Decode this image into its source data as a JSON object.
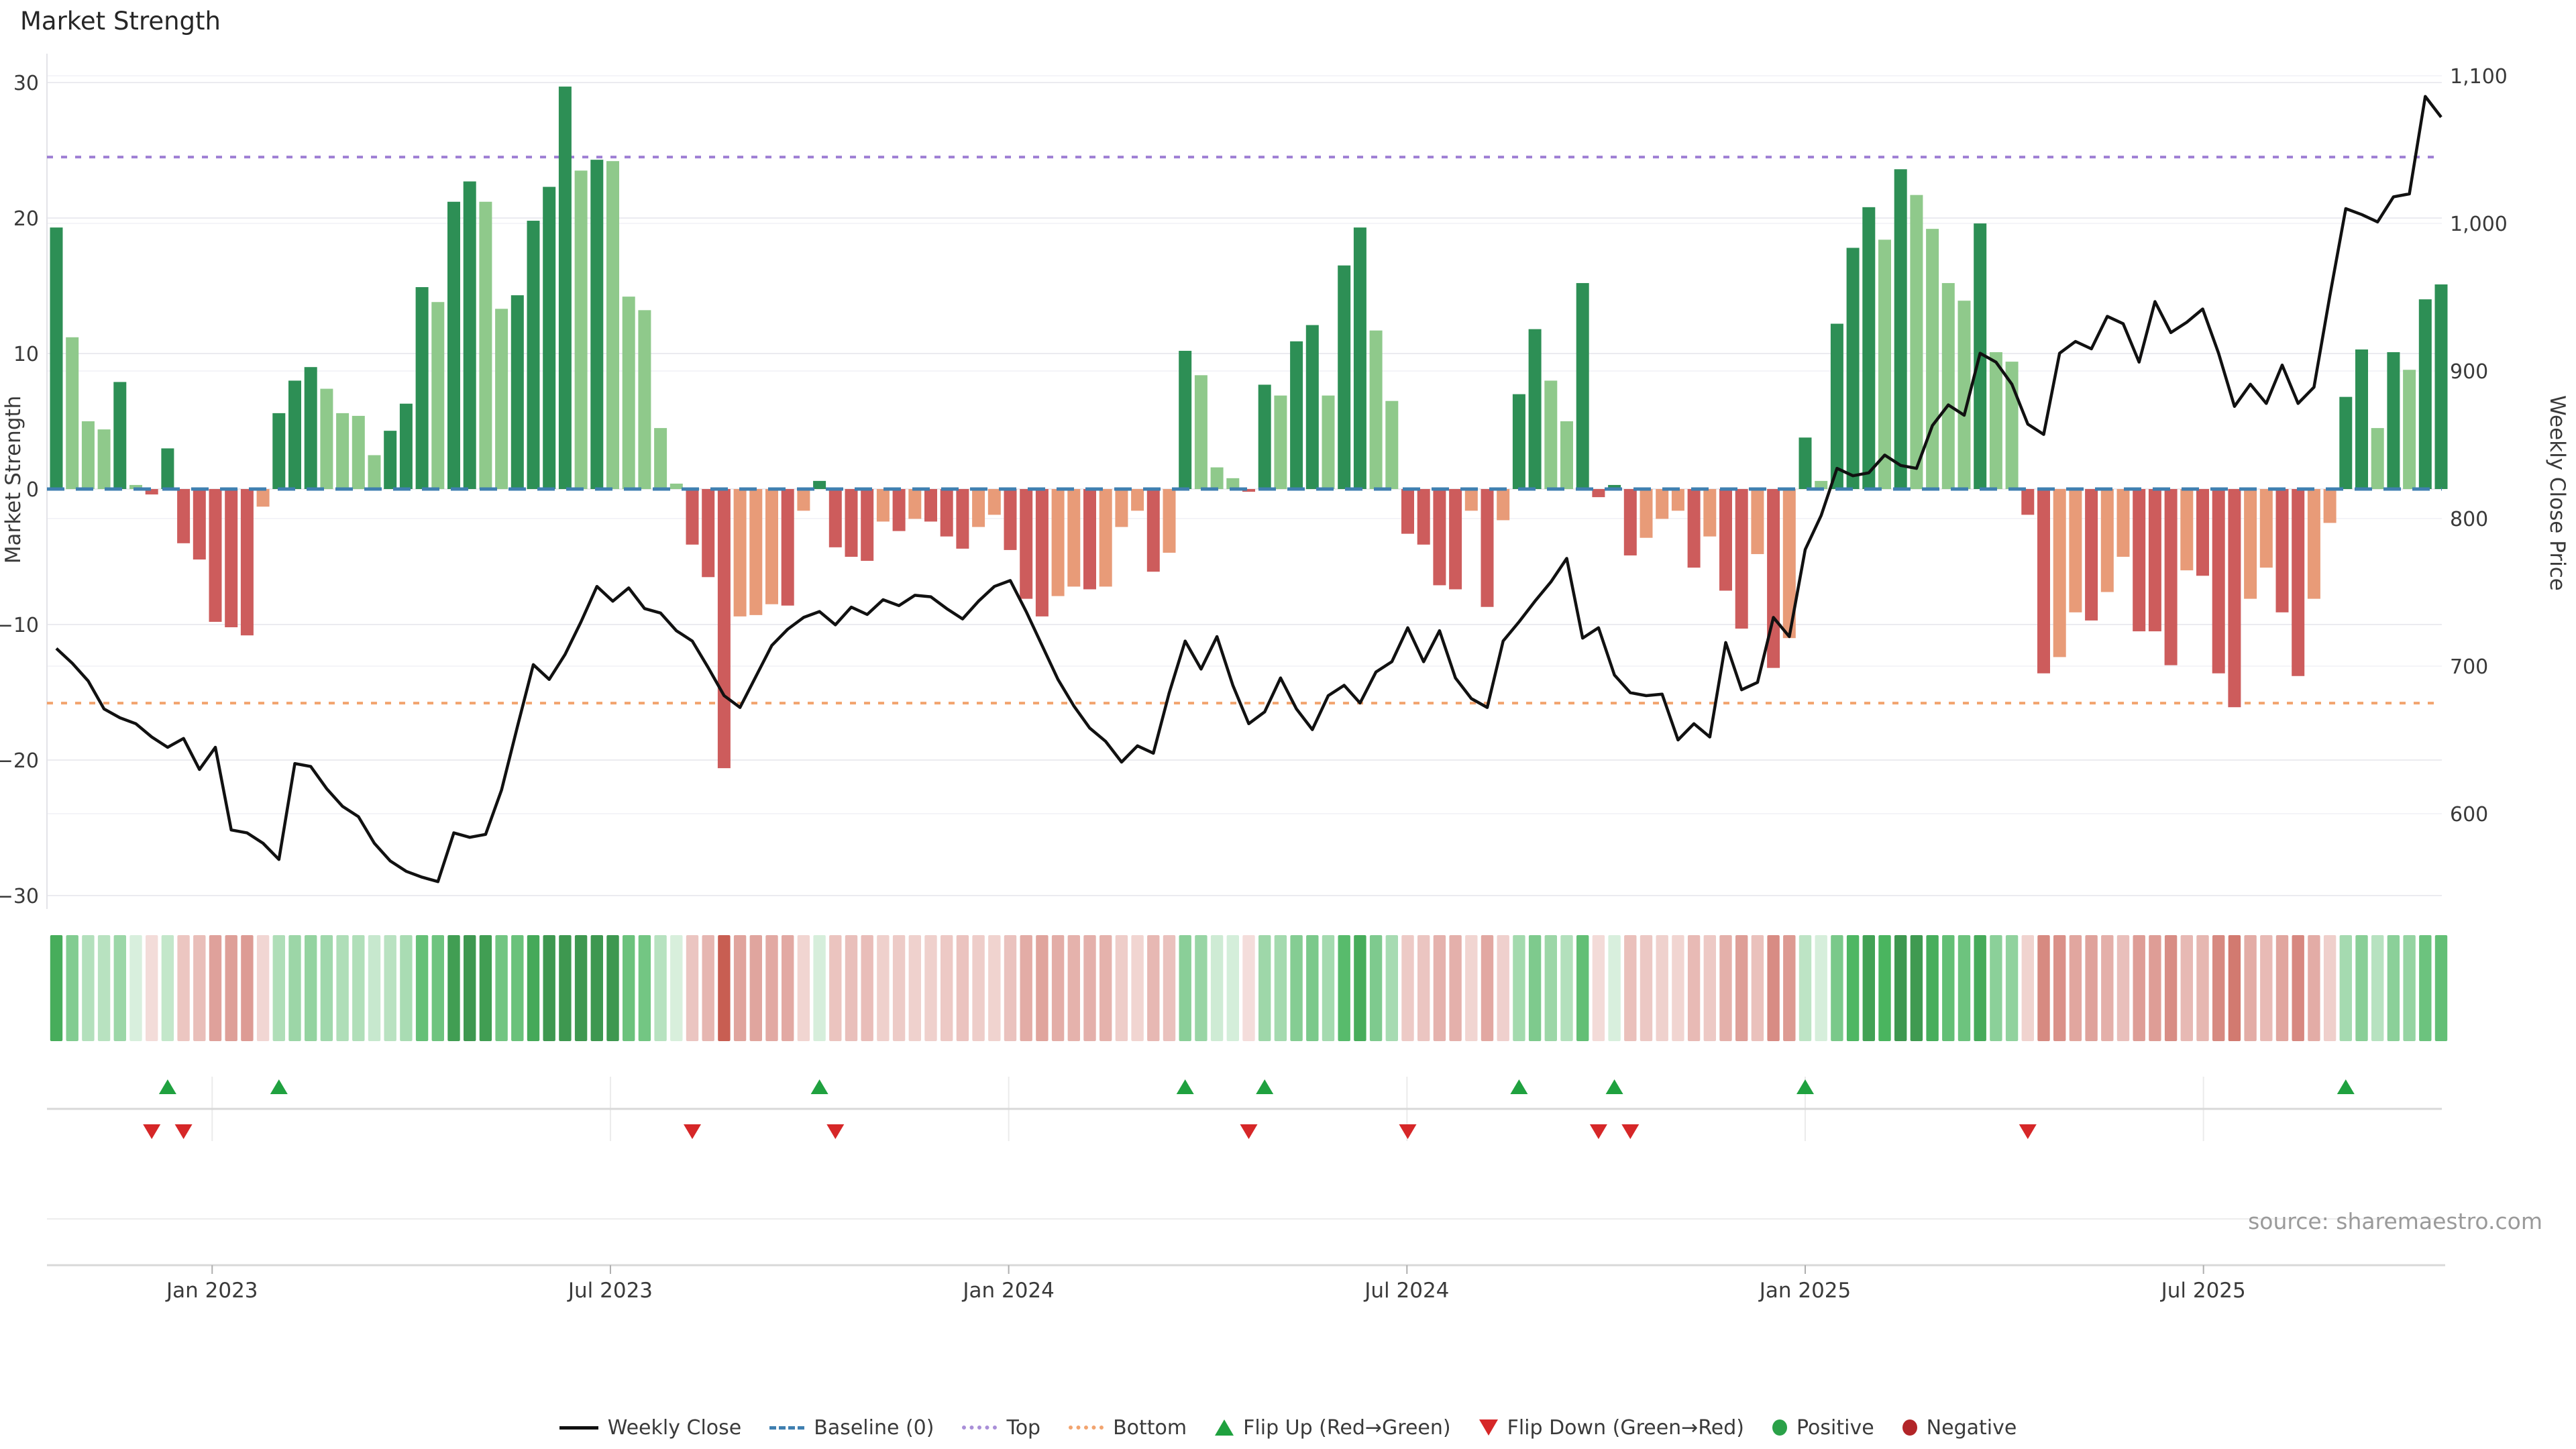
{
  "page": {
    "title": "Market Strength"
  },
  "chart": {
    "left_axis_label": "Market Strength",
    "right_axis_label": "Weekly Close Price",
    "source": "source: sharemaestro.com"
  },
  "chart_data": {
    "type": "bar+line",
    "title": "Market Strength",
    "x_unit": "week",
    "xlabel": "",
    "ylabel_left": "Market Strength",
    "ylabel_right": "Weekly Close Price",
    "ylim_left": [
      -31,
      34
    ],
    "ylim_right": [
      540,
      1130
    ],
    "left_ticks": [
      30,
      20,
      10,
      0,
      -10,
      -20,
      -30
    ],
    "right_ticks": [
      1100,
      1000,
      900,
      800,
      700,
      600
    ],
    "x_tick_labels": [
      "Jan 2023",
      "Jul 2023",
      "Jan 2024",
      "Jul 2024",
      "Jan 2025",
      "Jul 2025"
    ],
    "x_tick_weeks": [
      9.8,
      34.85,
      59.9,
      84.95,
      110.0,
      135.05
    ],
    "baseline": 0,
    "top_line": 24.5,
    "bottom_line": -15.8,
    "series": [
      {
        "name": "Market Strength (bars)",
        "values": [
          19.3,
          11.2,
          5.0,
          4.4,
          7.9,
          0.3,
          -0.4,
          3.0,
          -4.0,
          -5.2,
          -9.8,
          -10.2,
          -10.8,
          -1.3,
          5.6,
          8.0,
          9.0,
          7.4,
          5.6,
          5.4,
          2.5,
          4.3,
          6.3,
          14.9,
          13.8,
          21.2,
          22.7,
          21.2,
          13.3,
          14.3,
          19.8,
          22.3,
          29.7,
          23.5,
          24.3,
          24.2,
          14.2,
          13.2,
          4.5,
          0.4,
          -4.1,
          -6.5,
          -20.6,
          -9.4,
          -9.3,
          -8.5,
          -8.6,
          -1.6,
          0.6,
          -4.3,
          -5.0,
          -5.3,
          -2.4,
          -3.1,
          -2.2,
          -2.4,
          -3.5,
          -4.4,
          -2.8,
          -1.9,
          -4.5,
          -8.1,
          -9.4,
          -7.9,
          -7.2,
          -7.4,
          -7.2,
          -2.8,
          -1.6,
          -6.1,
          -4.7,
          10.2,
          8.4,
          1.6,
          0.8,
          -0.2,
          7.7,
          6.9,
          10.9,
          12.1,
          6.9,
          16.5,
          19.3,
          11.7,
          6.5,
          -3.3,
          -4.1,
          -7.1,
          -7.4,
          -1.6,
          -8.7,
          -2.3,
          7.0,
          11.8,
          8.0,
          5.0,
          15.2,
          -0.6,
          0.3,
          -4.9,
          -3.6,
          -2.2,
          -1.6,
          -5.8,
          -3.5,
          -7.5,
          -10.3,
          -4.8,
          -13.2,
          -11.0,
          3.8,
          0.6,
          12.2,
          17.8,
          20.8,
          18.4,
          23.6,
          21.7,
          19.2,
          15.2,
          13.9,
          19.6,
          10.1,
          9.4,
          -1.9,
          -13.6,
          -12.4,
          -9.1,
          -9.7,
          -7.6,
          -5.0,
          -10.5,
          -10.5,
          -13.0,
          -6.0,
          -6.4,
          -13.6,
          -16.1,
          -8.1,
          -5.8,
          -9.1,
          -13.8,
          -8.1,
          -2.5,
          6.8,
          10.3,
          4.5,
          10.1,
          8.8,
          14.0,
          15.1
        ]
      },
      {
        "name": "Weekly Close",
        "values": [
          712,
          702,
          690,
          671,
          665,
          661,
          652,
          645,
          651,
          630,
          645,
          589,
          587,
          580,
          569,
          634,
          632,
          617,
          605,
          598,
          580,
          568,
          561,
          557,
          554,
          587,
          584,
          586,
          616,
          659,
          701,
          691,
          708,
          730,
          754,
          744,
          753,
          739,
          736,
          724,
          717,
          699,
          680,
          672,
          693,
          714,
          725,
          733,
          737,
          728,
          740,
          735,
          745,
          741,
          748,
          747,
          739,
          732,
          744,
          754,
          758,
          737,
          714,
          691,
          673,
          658,
          649,
          635,
          646,
          641,
          682,
          717,
          698,
          720,
          687,
          661,
          669,
          692,
          671,
          657,
          680,
          687,
          675,
          696,
          703,
          726,
          703,
          724,
          692,
          678,
          672,
          717,
          730,
          744,
          757,
          773,
          719,
          726,
          694,
          682,
          680,
          681,
          650,
          661,
          652,
          716,
          684,
          689,
          733,
          720,
          779,
          802,
          834,
          829,
          831,
          843,
          836,
          834,
          863,
          877,
          870,
          912,
          906,
          891,
          864,
          857,
          912,
          920,
          915,
          937,
          932,
          906,
          947,
          926,
          933,
          942,
          912,
          876,
          891,
          878,
          904,
          878,
          889,
          951,
          1010,
          1006,
          1001,
          1018,
          1020,
          1086,
          1072
        ]
      }
    ],
    "flip_up_weeks": [
      7,
      14,
      48,
      71,
      76,
      92,
      98,
      110,
      144
    ],
    "flip_down_weeks": [
      6,
      8,
      40,
      49,
      75,
      85,
      97,
      99,
      124
    ],
    "legend_position": "bottom-center",
    "grid": true,
    "colors": {
      "bar_positive_dark": "#2d8f55",
      "bar_positive_light": "#8fc98b",
      "bar_negative_dark": "#cd5c5c",
      "bar_negative_light": "#e89b78",
      "weekly_close_line": "#111111",
      "baseline": "#3f7fb0",
      "top_line": "#9e7fd4",
      "bottom_line": "#f2a46f",
      "flip_up": "#1fa13f",
      "flip_down": "#d62728",
      "positive_marker": "#2aa148",
      "negative_marker": "#b22528",
      "grid_line": "#ebebf0",
      "axis_text": "#3a3a3a",
      "source_text": "#9a9a9a"
    }
  },
  "legend": {
    "items": [
      {
        "label": "Weekly Close"
      },
      {
        "label": "Baseline (0)"
      },
      {
        "label": "Top"
      },
      {
        "label": "Bottom"
      },
      {
        "label": "Flip Up (Red→Green)"
      },
      {
        "label": "Flip Down (Green→Red)"
      },
      {
        "label": "Positive"
      },
      {
        "label": "Negative"
      }
    ]
  }
}
